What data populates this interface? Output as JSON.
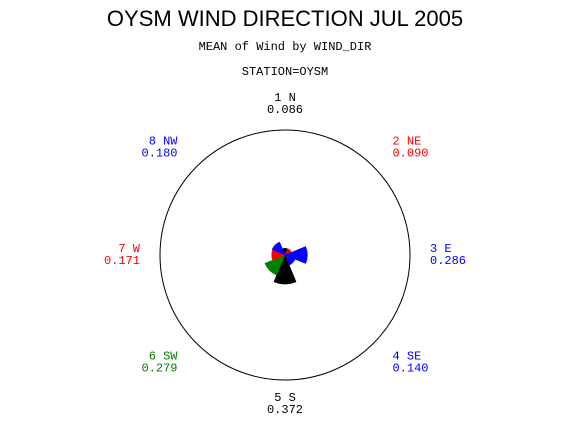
{
  "chart_data": {
    "type": "star",
    "title": "OYSM WIND DIRECTION JUL 2005",
    "subtitle": "MEAN of Wind by WIND_DIR",
    "group_label": "STATION=OYSM",
    "categories": [
      "1 N",
      "2 NE",
      "3 E",
      "4 SE",
      "5 S",
      "6 SW",
      "7 W",
      "8 NW"
    ],
    "values": [
      0.086,
      0.09,
      0.286,
      0.14,
      0.372,
      0.279,
      0.171,
      0.18
    ],
    "value_labels": [
      "0.086",
      "0.090",
      "0.286",
      "0.140",
      "0.372",
      "0.279",
      "0.171",
      "0.180"
    ],
    "colors": [
      "#000000",
      "#ff0000",
      "#0000ff",
      "#0000ff",
      "#000000",
      "#008000",
      "#ff0000",
      "#0000ff"
    ],
    "rlim": [
      0,
      1.6
    ]
  }
}
